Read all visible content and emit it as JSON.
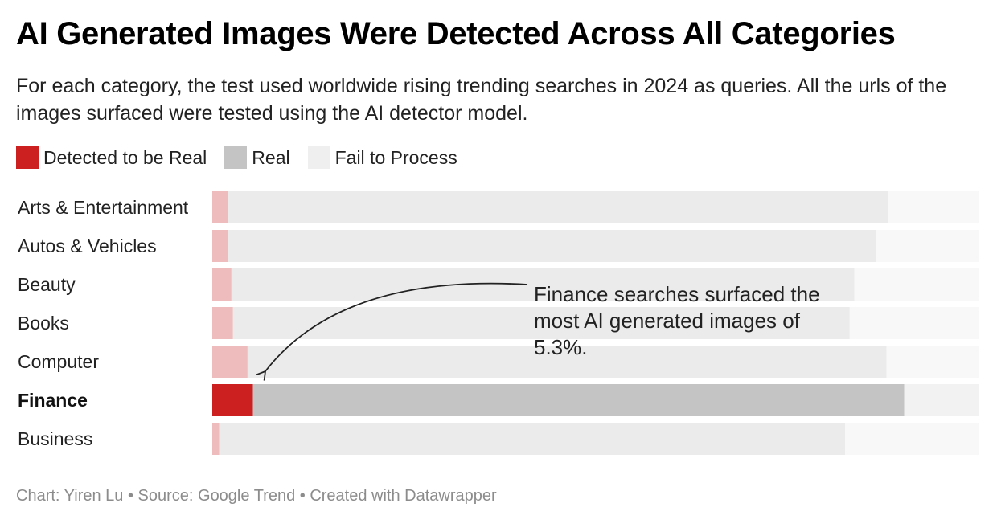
{
  "title": "AI Generated Images Were Detected Across All Categories",
  "subtitle": "For each category, the test used worldwide rising trending searches in 2024 as queries. All the urls of the images surfaced were tested using the AI detector model.",
  "legend": [
    {
      "label": "Detected to be Real",
      "color": "#cc1f1f"
    },
    {
      "label": "Real",
      "color": "#c4c4c4"
    },
    {
      "label": "Fail to Process",
      "color": "#efefef"
    }
  ],
  "annotation": "Finance searches surfaced the most AI generated images of 5.3%.",
  "footer": "Chart: Yiren Lu • Source: Google Trend • Created with Datawrapper",
  "colors": {
    "ai_highlight": "#cc1f1f",
    "ai_muted": "#eebcbc",
    "real_highlight": "#c4c4c4",
    "real_muted": "#ebebeb",
    "fail_highlight": "#f2f2f2",
    "fail_muted": "#f8f8f8"
  },
  "chart_data": {
    "type": "bar",
    "orientation": "horizontal",
    "stacked": true,
    "units": "percent",
    "highlighted_category": "Finance",
    "categories": [
      "Arts & Entertainment",
      "Autos & Vehicles",
      "Beauty",
      "Books",
      "Computer",
      "Finance",
      "Business"
    ],
    "series": [
      {
        "name": "Detected to be Real",
        "values": [
          2.1,
          2.1,
          2.5,
          2.7,
          4.6,
          5.3,
          0.9
        ]
      },
      {
        "name": "Real",
        "values": [
          86.0,
          84.5,
          81.2,
          80.4,
          83.3,
          84.9,
          81.6
        ]
      },
      {
        "name": "Fail to Process",
        "values": [
          11.9,
          13.4,
          16.3,
          16.9,
          12.1,
          9.8,
          17.5
        ]
      }
    ],
    "xlim": [
      0,
      100
    ]
  }
}
